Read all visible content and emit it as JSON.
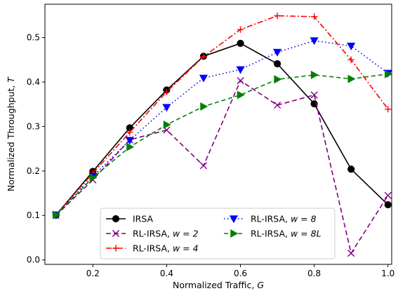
{
  "chart_data": {
    "type": "line",
    "xlabel": "Normalized Traffic, G",
    "ylabel": "Normalized Throughput, T",
    "xlim": [
      0.07,
      1.01
    ],
    "ylim": [
      -0.01,
      0.575
    ],
    "x_ticks": [
      0.2,
      0.4,
      0.6,
      0.8,
      1.0
    ],
    "x_tick_labels": [
      "0.2",
      "0.4",
      "0.6",
      "0.8",
      "1.0"
    ],
    "y_ticks": [
      0.0,
      0.1,
      0.2,
      0.3,
      0.4,
      0.5
    ],
    "y_tick_labels": [
      "0.0",
      "0.1",
      "0.2",
      "0.3",
      "0.4",
      "0.5"
    ],
    "grid": false,
    "legend_position": "bottom-center",
    "x": [
      0.1,
      0.2,
      0.3,
      0.4,
      0.5,
      0.6,
      0.7,
      0.8,
      0.9,
      1.0
    ],
    "series": [
      {
        "name": "IRSA",
        "name_main": "IRSA",
        "name_math": "",
        "color": "#000000",
        "dash": "",
        "marker": "circle",
        "values": [
          0.101,
          0.199,
          0.297,
          0.382,
          0.458,
          0.487,
          0.441,
          0.351,
          0.204,
          0.124
        ]
      },
      {
        "name": "RL-IRSA, w = 2",
        "name_main": "RL-IRSA, ",
        "name_math": "w = 2",
        "color": "#800080",
        "dash": "7,4",
        "marker": "x",
        "values": [
          0.1,
          0.18,
          0.27,
          0.292,
          0.212,
          0.403,
          0.348,
          0.371,
          0.015,
          0.145
        ]
      },
      {
        "name": "RL-IRSA, w = 4",
        "name_main": "RL-IRSA, ",
        "name_math": "w = 4",
        "color": "#ff0000",
        "dash": "8,3,2,3",
        "marker": "plus",
        "values": [
          0.101,
          0.195,
          0.287,
          0.378,
          0.457,
          0.518,
          0.549,
          0.547,
          0.45,
          0.339
        ]
      },
      {
        "name": "RL-IRSA, w = 8",
        "name_main": "RL-IRSA, ",
        "name_math": "w = 8",
        "color": "#0000ff",
        "dash": "1.5,3.5",
        "marker": "triangle-down",
        "values": [
          0.101,
          0.188,
          0.269,
          0.343,
          0.409,
          0.428,
          0.467,
          0.493,
          0.481,
          0.42
        ]
      },
      {
        "name": "RL-IRSA, w = 8L",
        "name_main": "RL-IRSA, ",
        "name_math": "w = 8L",
        "color": "#008000",
        "dash": "6,4",
        "marker": "triangle-right",
        "values": [
          0.101,
          0.185,
          0.254,
          0.304,
          0.345,
          0.371,
          0.406,
          0.416,
          0.407,
          0.418
        ]
      }
    ]
  }
}
